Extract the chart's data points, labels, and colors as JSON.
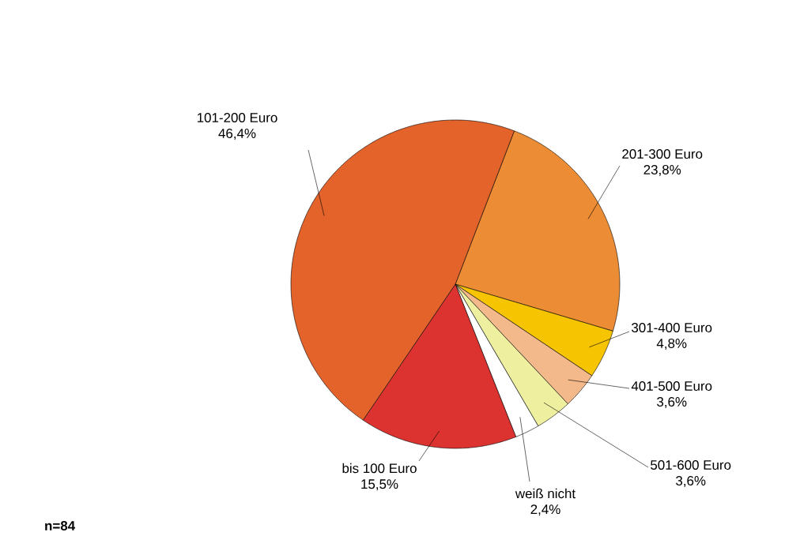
{
  "chart_data": {
    "type": "pie",
    "categories": [
      "201-300 Euro",
      "301-400 Euro",
      "401-500 Euro",
      "501-600 Euro",
      "weiß nicht",
      "bis 100 Euro",
      "101-200 Euro"
    ],
    "values": [
      23.8,
      4.8,
      3.6,
      3.6,
      2.4,
      15.5,
      46.4
    ],
    "value_labels": [
      "23,8%",
      "4,8%",
      "3,6%",
      "3,6%",
      "2,4%",
      "15,5%",
      "46,4%"
    ],
    "colors": [
      "#ec8c34",
      "#f6c400",
      "#f3b98b",
      "#eef0a0",
      "#ffffff",
      "#dc3330",
      "#e3632b"
    ],
    "annotations": [
      "**n=84**"
    ]
  }
}
